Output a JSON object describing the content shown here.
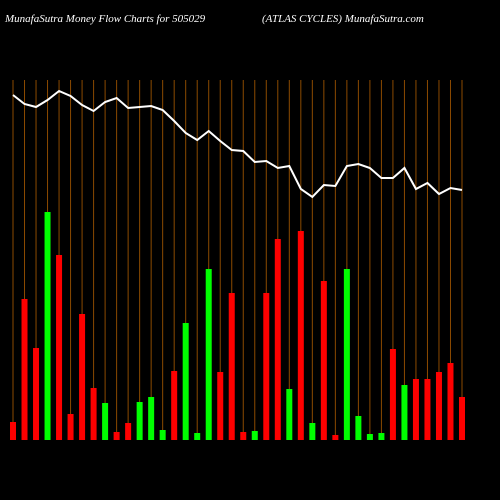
{
  "chart_data": {
    "type": "money-flow",
    "title": "MunafaSutra  Money Flow  Charts for 505029",
    "subtitle": "(ATLAS CYCLES) MunafaSutra.com",
    "ylim": [
      0,
      350
    ],
    "series": [
      {
        "type": "bar",
        "values": [
          18,
          141,
          92,
          228,
          185,
          26,
          126,
          52,
          37,
          8,
          17,
          38,
          43,
          10,
          69,
          117,
          7,
          171,
          68,
          147,
          8,
          9,
          147,
          201,
          51,
          209,
          17,
          159,
          5,
          171,
          24,
          6,
          7,
          91,
          55,
          61,
          61,
          68,
          77,
          43
        ],
        "colors": [
          "#ff0000",
          "#ff0000",
          "#ff0000",
          "#00ff00",
          "#ff0000",
          "#ff0000",
          "#ff0000",
          "#ff0000",
          "#00ff00",
          "#ff0000",
          "#ff0000",
          "#00ff00",
          "#00ff00",
          "#00ff00",
          "#ff0000",
          "#00ff00",
          "#00ff00",
          "#00ff00",
          "#ff0000",
          "#ff0000",
          "#ff0000",
          "#00ff00",
          "#ff0000",
          "#ff0000",
          "#00ff00",
          "#ff0000",
          "#00ff00",
          "#ff0000",
          "#ff0000",
          "#00ff00",
          "#00ff00",
          "#00ff00",
          "#00ff00",
          "#ff0000",
          "#00ff00",
          "#ff0000",
          "#ff0000",
          "#ff0000",
          "#ff0000",
          "#ff0000"
        ]
      },
      {
        "type": "line",
        "color": "#ffffff",
        "values": [
          345,
          336,
          333,
          340,
          349,
          344,
          335,
          329,
          338,
          342,
          332,
          333,
          334,
          330,
          319,
          307,
          300,
          309,
          299,
          290,
          289,
          278,
          279,
          272,
          274,
          251,
          243,
          255,
          254,
          274,
          276,
          272,
          262,
          262,
          272,
          251,
          257,
          246,
          252,
          250
        ]
      }
    ]
  }
}
